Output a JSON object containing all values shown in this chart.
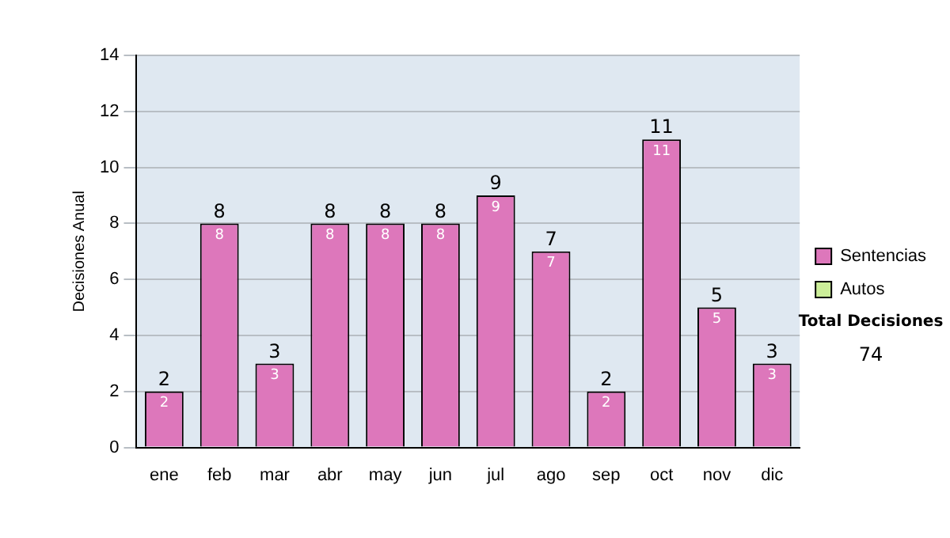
{
  "chart_data": {
    "type": "bar",
    "stacked": true,
    "ylabel": "Decisiones Anual",
    "categories": [
      "ene",
      "feb",
      "mar",
      "abr",
      "may",
      "jun",
      "jul",
      "ago",
      "sep",
      "oct",
      "nov",
      "dic"
    ],
    "series": [
      {
        "name": "Sentencias",
        "color": "#dd77bb",
        "values": [
          2,
          8,
          3,
          8,
          8,
          8,
          9,
          7,
          2,
          11,
          5,
          3
        ],
        "value_labels": [
          "2",
          "8",
          "3",
          "8",
          "8",
          "8",
          "9",
          "7",
          "2",
          "11",
          "5",
          "3"
        ]
      },
      {
        "name": "Autos",
        "color": "#ccee99",
        "values": [
          0,
          0,
          0,
          0,
          0,
          0,
          0,
          0,
          0,
          0,
          0,
          0
        ]
      }
    ],
    "totals": [
      "2",
      "8",
      "3",
      "8",
      "8",
      "8",
      "9",
      "7",
      "2",
      "11",
      "5",
      "3"
    ],
    "ylim": [
      0,
      14
    ],
    "yticks": [
      0,
      2,
      4,
      6,
      8,
      10,
      12,
      14
    ],
    "grid": "y",
    "legend": "right",
    "annotations": [
      "Total Decisiones",
      "74"
    ]
  }
}
